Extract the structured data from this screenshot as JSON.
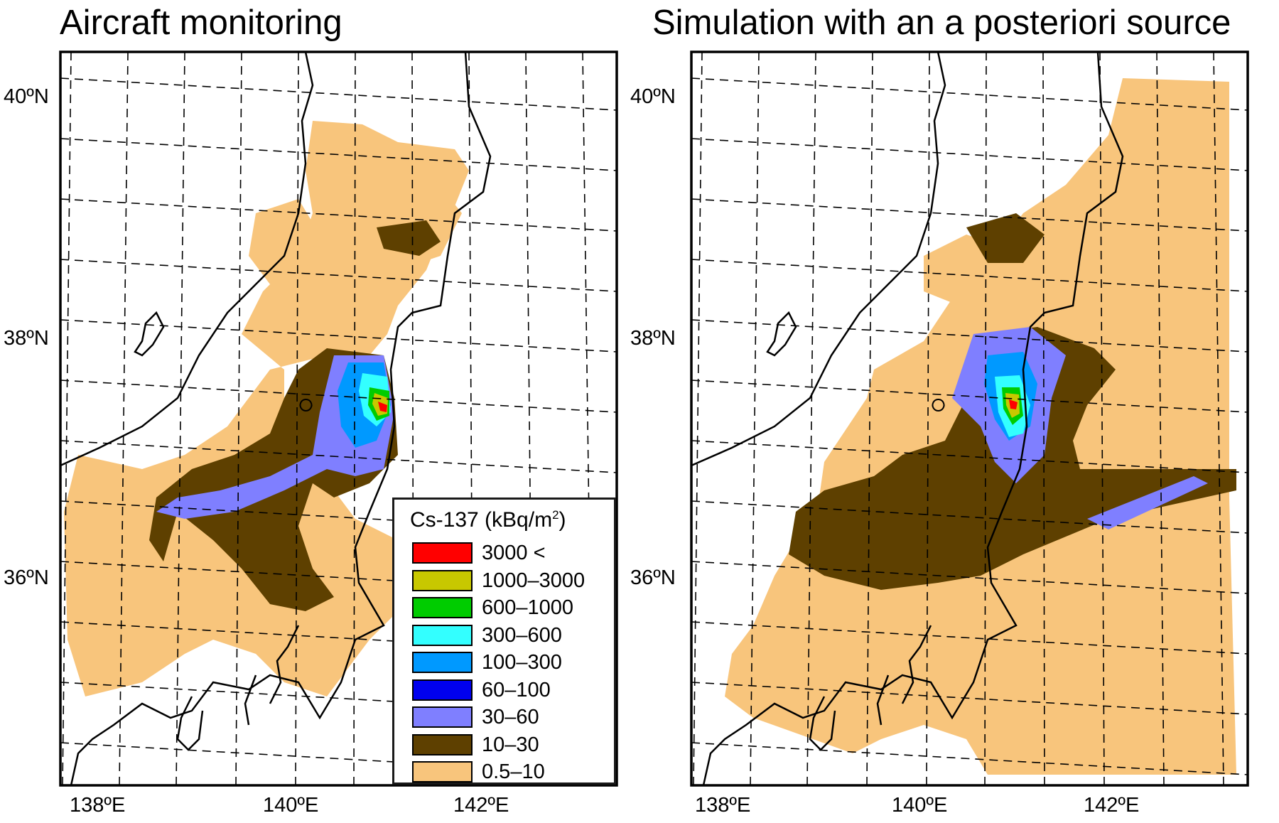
{
  "panels": {
    "left_title": "Aircraft monitoring",
    "right_title": "Simulation with an a posteriori source"
  },
  "axes": {
    "lat_labels": [
      "40ºN",
      "38ºN",
      "36ºN"
    ],
    "lon_labels": [
      "138ºE",
      "140ºE",
      "142ºE"
    ]
  },
  "legend": {
    "title": "Cs-137 (kBq/m",
    "title_sup": "2",
    "title_end": ")",
    "items": [
      {
        "label": "3000 <",
        "color": "#ff0000"
      },
      {
        "label": "1000–3000",
        "color": "#c8c800"
      },
      {
        "label": "600–1000",
        "color": "#00cc00"
      },
      {
        "label": "300–600",
        "color": "#33ffff"
      },
      {
        "label": "100–300",
        "color": "#0099ff"
      },
      {
        "label": "60–100",
        "color": "#0000ee"
      },
      {
        "label": "30–60",
        "color": "#7f7fff"
      },
      {
        "label": "10–30",
        "color": "#5e4000"
      },
      {
        "label": "0.5–10",
        "color": "#f8c57c"
      }
    ]
  }
}
